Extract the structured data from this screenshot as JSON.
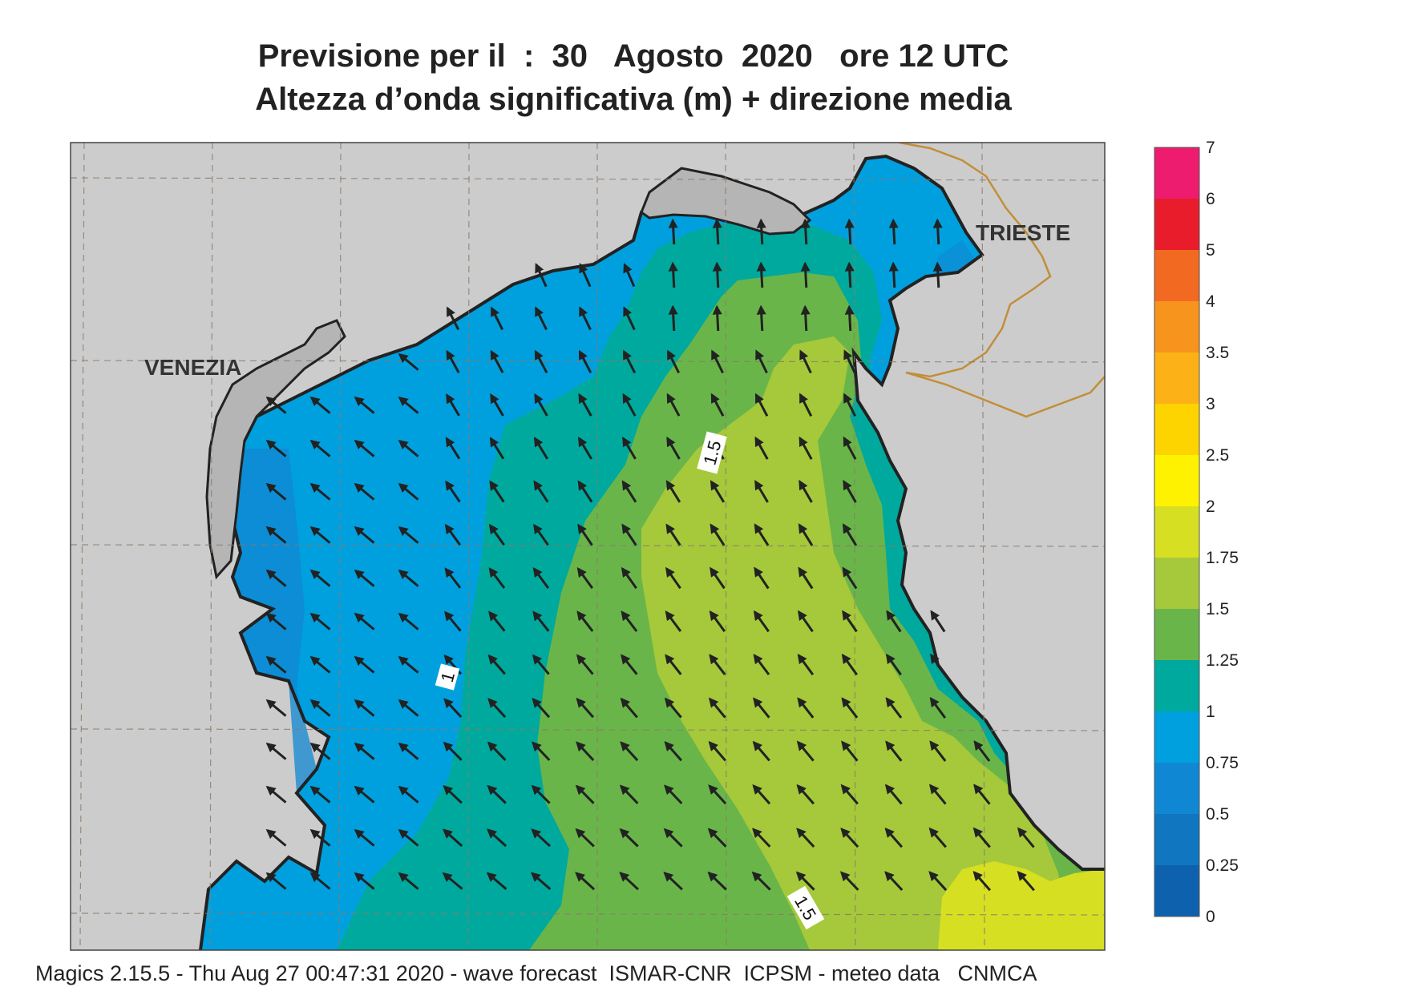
{
  "title_line1": "Previsione per il  :  30   Agosto  2020   ore 12 UTC",
  "title_line2": "Altezza d’onda significativa (m) + direzione media",
  "map": {
    "cities": [
      {
        "name": "VENEZIA"
      },
      {
        "name": "TRIESTE"
      }
    ],
    "contour_labels": [
      "1",
      "1.5",
      "1.5"
    ]
  },
  "legend": {
    "levels": [
      "7",
      "6",
      "5",
      "4",
      "3.5",
      "3",
      "2.5",
      "2",
      "1.75",
      "1.5",
      "1.25",
      "1",
      "0.75",
      "0.5",
      "0.25",
      "0"
    ],
    "colors": [
      "#ee1c6e",
      "#e81c2a",
      "#f26a21",
      "#f7941d",
      "#fcb216",
      "#fdd400",
      "#fff200",
      "#d7df23",
      "#a5c93a",
      "#6ab54a",
      "#00a99d",
      "#00a0df",
      "#1087d2",
      "#1076bf",
      "#0e62ad"
    ]
  },
  "colors": {
    "land": "#cccccc",
    "sea_band_025_05": "#1087d2",
    "sea_band_05_075": "#1a95dc",
    "sea_band_075_1": "#00a0df",
    "sea_band_1_125": "#00a99d",
    "sea_band_125_15": "#6ab54a",
    "sea_band_15_175": "#a5c93a",
    "sea_band_175_2": "#d7df23",
    "coastline": "#222222",
    "border": "#c28e3a",
    "arrow": "#222222"
  },
  "footer": "Magics 2.15.5 - Thu Aug 27 00:47:31 2020 - wave forecast  ISMAR-CNR  ICPSM - meteo data   CNMCA"
}
